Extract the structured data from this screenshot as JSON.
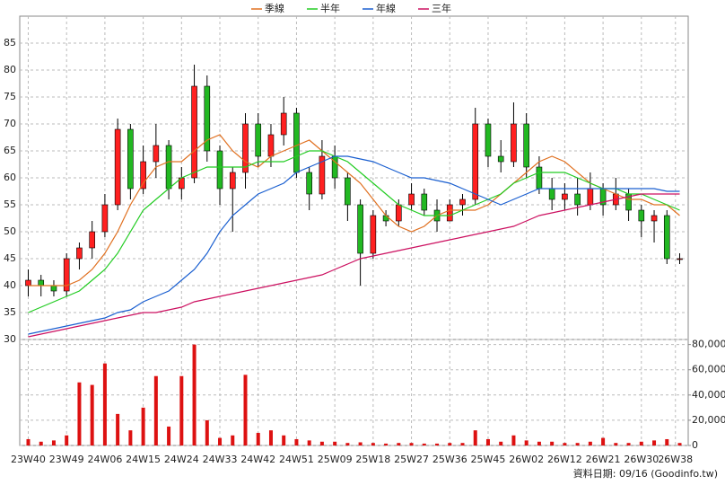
{
  "chart_data": {
    "type": "candlestick",
    "legend": "top",
    "grid": true,
    "up_color": "#ff2020",
    "down_color": "#22b822",
    "volume_color": "#dd1111",
    "source": "資料日期: 09/16  (Goodinfo.tw)",
    "x": [
      0,
      3,
      6,
      9,
      12,
      15,
      18,
      21,
      24,
      27,
      30,
      33,
      36,
      39,
      42,
      45,
      48,
      51,
      54,
      57,
      60,
      63,
      66,
      69,
      72,
      75,
      78,
      81,
      84,
      87,
      90,
      93,
      96,
      99,
      102,
      105,
      108,
      111,
      114,
      117,
      120,
      123,
      126,
      129,
      132,
      135,
      138,
      141,
      144,
      147,
      150,
      153
    ],
    "xlim": [
      -2,
      155
    ],
    "xticks": [
      {
        "value": 0,
        "label": "23W40"
      },
      {
        "value": 9,
        "label": "23W49"
      },
      {
        "value": 18,
        "label": "24W06"
      },
      {
        "value": 27,
        "label": "24W15"
      },
      {
        "value": 36,
        "label": "24W24"
      },
      {
        "value": 45,
        "label": "24W33"
      },
      {
        "value": 54,
        "label": "24W42"
      },
      {
        "value": 63,
        "label": "24W51"
      },
      {
        "value": 72,
        "label": "25W09"
      },
      {
        "value": 81,
        "label": "25W18"
      },
      {
        "value": 90,
        "label": "25W27"
      },
      {
        "value": 99,
        "label": "25W36"
      },
      {
        "value": 108,
        "label": "25W45"
      },
      {
        "value": 117,
        "label": "26W02"
      },
      {
        "value": 126,
        "label": "26W12"
      },
      {
        "value": 135,
        "label": "26W21"
      },
      {
        "value": 144,
        "label": "26W30"
      },
      {
        "value": 152,
        "label": "26W38"
      }
    ],
    "open": [
      40,
      41,
      40,
      39,
      45,
      47,
      50,
      55,
      69,
      58,
      63,
      66,
      58,
      60,
      77,
      65,
      58,
      61,
      70,
      64,
      68,
      72,
      61,
      57,
      64,
      60,
      55,
      46,
      53,
      52,
      55,
      57,
      54,
      52,
      55,
      56,
      70,
      64,
      63,
      70,
      62,
      58,
      56,
      57,
      55,
      58,
      55,
      57,
      54,
      52,
      53,
      45
    ],
    "high": [
      43,
      42,
      41,
      46,
      48,
      52,
      57,
      71,
      70,
      66,
      70,
      67,
      62,
      81,
      79,
      66,
      62,
      72,
      72,
      70,
      75,
      73,
      62,
      67,
      66,
      61,
      56,
      54,
      54,
      56,
      59,
      58,
      56,
      56,
      57,
      73,
      71,
      67,
      74,
      72,
      64,
      60,
      59,
      60,
      61,
      59,
      60,
      58,
      55,
      54,
      54,
      46
    ],
    "low": [
      38,
      38,
      38,
      38,
      43,
      45,
      49,
      54,
      56,
      57,
      60,
      56,
      56,
      59,
      63,
      55,
      50,
      58,
      62,
      62,
      66,
      60,
      54,
      56,
      58,
      52,
      40,
      45,
      51,
      51,
      54,
      53,
      50,
      52,
      53,
      55,
      62,
      61,
      62,
      60,
      57,
      54,
      54,
      53,
      54,
      53,
      54,
      52,
      49,
      48,
      44,
      44
    ],
    "close": [
      41,
      40,
      39,
      45,
      47,
      50,
      55,
      69,
      58,
      63,
      66,
      58,
      60,
      77,
      65,
      58,
      61,
      70,
      64,
      68,
      72,
      61,
      57,
      64,
      60,
      55,
      46,
      53,
      52,
      55,
      57,
      54,
      52,
      55,
      56,
      70,
      64,
      63,
      70,
      62,
      58,
      56,
      57,
      55,
      58,
      55,
      57,
      54,
      52,
      53,
      45,
      45
    ],
    "volume": [
      5000,
      3000,
      4000,
      8000,
      50000,
      48000,
      65000,
      25000,
      12000,
      30000,
      55000,
      15000,
      55000,
      80000,
      20000,
      6000,
      8000,
      56000,
      10000,
      12000,
      8000,
      5000,
      4000,
      3000,
      3000,
      2000,
      2500,
      2000,
      1500,
      2000,
      2000,
      1500,
      1500,
      2000,
      2000,
      12000,
      5000,
      3000,
      8000,
      4000,
      3000,
      3000,
      2000,
      2000,
      3000,
      6000,
      2000,
      2000,
      3000,
      4000,
      5000,
      2000
    ],
    "ylim": [
      30,
      90
    ],
    "yticks": [
      30,
      35,
      40,
      45,
      50,
      55,
      60,
      65,
      70,
      75,
      80,
      85
    ],
    "y2lim": [
      0,
      84000
    ],
    "y2ticks": [
      0,
      {
        "value": 20000,
        "label": "20,000"
      },
      {
        "value": 40000,
        "label": "40,000"
      },
      {
        "value": 60000,
        "label": "60,000"
      },
      {
        "value": 80000,
        "label": "80,000"
      }
    ],
    "series": [
      {
        "name": "季線",
        "color": "#e07020",
        "values": [
          40,
          40,
          40,
          40,
          41,
          43,
          46,
          50,
          55,
          59,
          62,
          63,
          63,
          65,
          67,
          68,
          65,
          63,
          62,
          64,
          65,
          66,
          67,
          65,
          63,
          61,
          59,
          56,
          53,
          51,
          50,
          51,
          53,
          54,
          54,
          54,
          55,
          57,
          59,
          61,
          63,
          64,
          63,
          61,
          59,
          58,
          57,
          56,
          56,
          55,
          55,
          53
        ]
      },
      {
        "name": "半年",
        "color": "#22cc22",
        "values": [
          35,
          36,
          37,
          38,
          39,
          41,
          43,
          46,
          50,
          54,
          56,
          58,
          60,
          61,
          62,
          62,
          62,
          62,
          63,
          63,
          63,
          64,
          65,
          65,
          64,
          63,
          61,
          59,
          57,
          55,
          54,
          53,
          53,
          53,
          54,
          55,
          56,
          57,
          59,
          60,
          61,
          61,
          61,
          60,
          59,
          58,
          58,
          57,
          57,
          56,
          55,
          54
        ]
      },
      {
        "name": "年線",
        "color": "#1a5fd0",
        "values": [
          31,
          31.5,
          32,
          32.5,
          33,
          33.5,
          34,
          35,
          35.5,
          37,
          38,
          39,
          41,
          43,
          46,
          50,
          53,
          55,
          57,
          58,
          59,
          61,
          62,
          63,
          64,
          64,
          63.5,
          63,
          62,
          61,
          60,
          60,
          59.5,
          59,
          58,
          57,
          56,
          55,
          56,
          57,
          58,
          58,
          58,
          58,
          58,
          58,
          58,
          58,
          58,
          58,
          57.5,
          57.5
        ]
      },
      {
        "name": "三年",
        "color": "#cc1060",
        "values": [
          30.5,
          31,
          31.5,
          32,
          32.5,
          33,
          33.5,
          34,
          34.5,
          35,
          35,
          35.5,
          36,
          37,
          37.5,
          38,
          38.5,
          39,
          39.5,
          40,
          40.5,
          41,
          41.5,
          42,
          43,
          44,
          45,
          45.5,
          46,
          46.5,
          47,
          47.5,
          48,
          48.5,
          49,
          49.5,
          50,
          50.5,
          51,
          52,
          53,
          53.5,
          54,
          54.5,
          55,
          55.5,
          56,
          56.5,
          57,
          57,
          57,
          57
        ]
      }
    ]
  }
}
